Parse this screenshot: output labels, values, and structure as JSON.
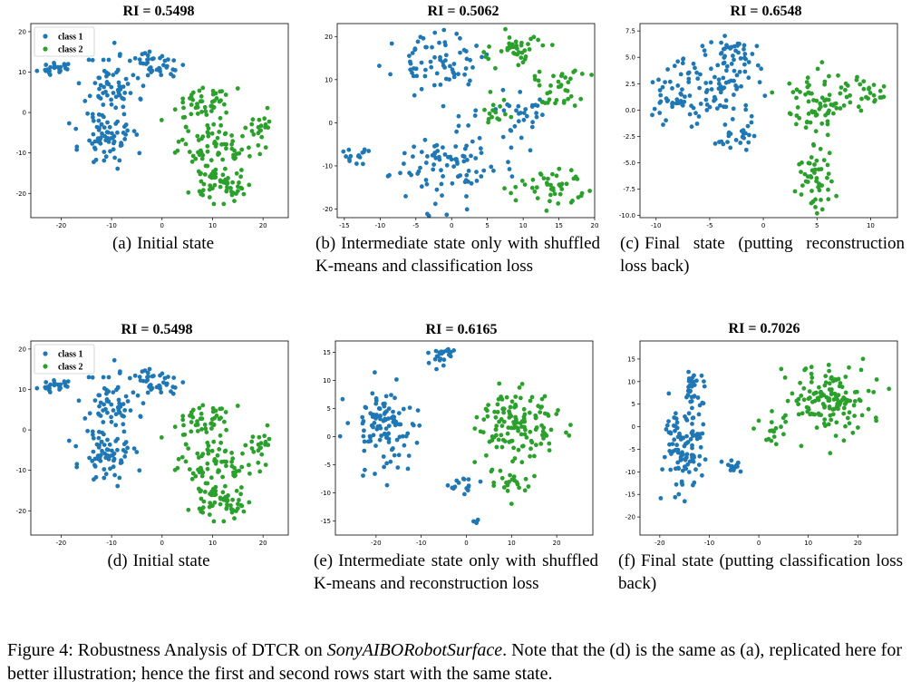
{
  "colors": {
    "class1": "#1f77b4",
    "class2": "#2ca02c"
  },
  "figure_caption": {
    "lead": "Figure 4: Robustness Analysis of DTCR on ",
    "dataset": "SonyAIBORobotSurface",
    "rest": ". Note that the (d) is the same as (a), replicated here for better illustration; hence the first and second rows start with the same state."
  },
  "chart_data": [
    {
      "type": "scatter",
      "title": "RI  =  0.5498",
      "caption_label": "(a)",
      "caption_text": "Initial state",
      "xlim": [
        -26,
        25
      ],
      "ylim": [
        -26,
        22
      ],
      "xticks": [
        {
          "v": -20,
          "label": "-20"
        },
        {
          "v": -10,
          "label": "-10"
        },
        {
          "v": 0,
          "label": "0"
        },
        {
          "v": 10,
          "label": "10"
        },
        {
          "v": 20,
          "label": "20"
        }
      ],
      "yticks": [
        {
          "v": 20,
          "label": "20"
        },
        {
          "v": 10,
          "label": "10"
        },
        {
          "v": 0,
          "label": "0"
        },
        {
          "v": -10,
          "label": "-10"
        },
        {
          "v": -20,
          "label": "-20"
        }
      ],
      "legend": [
        "class 1",
        "class 2"
      ],
      "legend_position": "top-left",
      "series": [
        {
          "name": "class 1",
          "clusters": [
            [
              -21,
              11,
              2,
              1.3,
              25
            ],
            [
              -10,
              7,
              3.5,
              5,
              60
            ],
            [
              -11,
              -6,
              3.5,
              5,
              70
            ],
            [
              -1,
              12,
              4,
              2.2,
              40
            ]
          ]
        },
        {
          "name": "class 2",
          "clusters": [
            [
              8,
              2,
              4,
              3,
              50
            ],
            [
              10,
              -8,
              4.5,
              4,
              70
            ],
            [
              12,
              -18,
              4,
              3,
              60
            ],
            [
              19,
              -3,
              2.5,
              3,
              20
            ]
          ]
        }
      ]
    },
    {
      "type": "scatter",
      "title": "RI = 0.5062",
      "caption_label": "(b)",
      "caption_text": "Intermediate state only with shuffled K-means and classification loss",
      "xlim": [
        -16,
        20
      ],
      "ylim": [
        -22,
        23
      ],
      "xticks": [
        {
          "v": -15,
          "label": "-15"
        },
        {
          "v": -10,
          "label": "-10"
        },
        {
          "v": -5,
          "label": "-5"
        },
        {
          "v": 0,
          "label": "0"
        },
        {
          "v": 5,
          "label": "5"
        },
        {
          "v": 10,
          "label": "10"
        },
        {
          "v": 15,
          "label": "15"
        },
        {
          "v": 20,
          "label": "20"
        }
      ],
      "yticks": [
        {
          "v": 20,
          "label": "20"
        },
        {
          "v": 10,
          "label": "10"
        },
        {
          "v": 0,
          "label": "0"
        },
        {
          "v": -10,
          "label": "-10"
        },
        {
          "v": -20,
          "label": "-20"
        }
      ],
      "series": [
        {
          "name": "class 1",
          "clusters": [
            [
              -2,
              14,
              4,
              4,
              70
            ],
            [
              -1,
              -10,
              5,
              6,
              90
            ],
            [
              -13,
              -8,
              1.6,
              1.6,
              15
            ],
            [
              9,
              2,
              3,
              5,
              35
            ]
          ]
        },
        {
          "name": "class 2",
          "clusters": [
            [
              9,
              17,
              3,
              3,
              40
            ],
            [
              15,
              8,
              2.5,
              4,
              35
            ],
            [
              14,
              -15,
              3,
              3,
              45
            ],
            [
              6,
              3,
              2,
              2,
              15
            ]
          ]
        }
      ]
    },
    {
      "type": "scatter",
      "title": "RI = 0.6548",
      "caption_label": "(c)",
      "caption_text": "Final state (putting reconstruction loss back)",
      "xlim": [
        -11.5,
        12.5
      ],
      "ylim": [
        -10.2,
        8.2
      ],
      "xticks": [
        {
          "v": -10,
          "label": "-10"
        },
        {
          "v": -5,
          "label": "-5"
        },
        {
          "v": 0,
          "label": "0"
        },
        {
          "v": 5,
          "label": "5"
        },
        {
          "v": 10,
          "label": "10"
        }
      ],
      "yticks": [
        {
          "v": 7.5,
          "label": "7.5"
        },
        {
          "v": 5,
          "label": "5.0"
        },
        {
          "v": 2.5,
          "label": "2.5"
        },
        {
          "v": 0,
          "label": "0.0"
        },
        {
          "v": -2.5,
          "label": "-2.5"
        },
        {
          "v": -5,
          "label": "-5.0"
        },
        {
          "v": -7.5,
          "label": "-7.5"
        },
        {
          "v": -10,
          "label": "-10.0"
        }
      ],
      "series": [
        {
          "name": "class 1",
          "clusters": [
            [
              -5,
              2,
              3,
              2,
              90
            ],
            [
              -3,
              5.5,
              1.5,
              1.3,
              40
            ],
            [
              -3,
              -2.5,
              1.2,
              1,
              25
            ],
            [
              -9,
              0.5,
              1.2,
              1.2,
              20
            ]
          ]
        },
        {
          "name": "class 2",
          "clusters": [
            [
              5,
              1,
              1.8,
              2.2,
              70
            ],
            [
              5,
              -6,
              1.2,
              2,
              50
            ],
            [
              9.5,
              1.5,
              1.3,
              1.3,
              25
            ]
          ]
        }
      ]
    },
    {
      "type": "scatter",
      "title": "RI  =  0.5498",
      "caption_label": "(d)",
      "caption_text": "Initial state",
      "xlim": [
        -26,
        25
      ],
      "ylim": [
        -26,
        22
      ],
      "xticks": [
        {
          "v": -20,
          "label": "-20"
        },
        {
          "v": -10,
          "label": "-10"
        },
        {
          "v": 0,
          "label": "0"
        },
        {
          "v": 10,
          "label": "10"
        },
        {
          "v": 20,
          "label": "20"
        }
      ],
      "yticks": [
        {
          "v": 20,
          "label": "20"
        },
        {
          "v": 10,
          "label": "10"
        },
        {
          "v": 0,
          "label": "0"
        },
        {
          "v": -10,
          "label": "-10"
        },
        {
          "v": -20,
          "label": "-20"
        }
      ],
      "legend": [
        "class 1",
        "class 2"
      ],
      "legend_position": "top-left",
      "series": [
        {
          "name": "class 1",
          "clusters": [
            [
              -21,
              11,
              2,
              1.3,
              25
            ],
            [
              -10,
              7,
              3.5,
              5,
              60
            ],
            [
              -11,
              -6,
              3.5,
              5,
              70
            ],
            [
              -1,
              12,
              4,
              2.2,
              40
            ]
          ]
        },
        {
          "name": "class 2",
          "clusters": [
            [
              8,
              2,
              4,
              3,
              50
            ],
            [
              10,
              -8,
              4.5,
              4,
              70
            ],
            [
              12,
              -18,
              4,
              3,
              60
            ],
            [
              19,
              -3,
              2.5,
              3,
              20
            ]
          ]
        }
      ]
    },
    {
      "type": "scatter",
      "title": "RI = 0.6165",
      "caption_label": "(e)",
      "caption_text": "Intermediate state only with shuffled K-means and reconstruction loss",
      "xlim": [
        -29,
        28
      ],
      "ylim": [
        -17.5,
        17
      ],
      "xticks": [
        {
          "v": -20,
          "label": "-20"
        },
        {
          "v": -10,
          "label": "-10"
        },
        {
          "v": 0,
          "label": "0"
        },
        {
          "v": 10,
          "label": "10"
        },
        {
          "v": 20,
          "label": "20"
        }
      ],
      "yticks": [
        {
          "v": 15,
          "label": "15"
        },
        {
          "v": 10,
          "label": "10"
        },
        {
          "v": 5,
          "label": "5"
        },
        {
          "v": 0,
          "label": "0"
        },
        {
          "v": -5,
          "label": "-5"
        },
        {
          "v": -10,
          "label": "-10"
        },
        {
          "v": -15,
          "label": "-15"
        }
      ],
      "series": [
        {
          "name": "class 1",
          "clusters": [
            [
              -18,
              2,
              5,
              5,
              110
            ],
            [
              -5,
              14,
              2,
              1.5,
              25
            ],
            [
              -1,
              -9,
              2,
              1.5,
              15
            ],
            [
              2,
              -15,
              0.8,
              0.8,
              4
            ]
          ]
        },
        {
          "name": "class 2",
          "clusters": [
            [
              12,
              2,
              7,
              4,
              130
            ],
            [
              10,
              -8,
              3,
              2,
              25
            ]
          ]
        }
      ]
    },
    {
      "type": "scatter",
      "title": "RI = 0.7026",
      "caption_label": "(f)",
      "caption_text": "Final state (putting classification loss back)",
      "xlim": [
        -24,
        28
      ],
      "ylim": [
        -24,
        19
      ],
      "xticks": [
        {
          "v": -20,
          "label": "-20"
        },
        {
          "v": -10,
          "label": "-10"
        },
        {
          "v": 0,
          "label": "0"
        },
        {
          "v": 10,
          "label": "10"
        },
        {
          "v": 20,
          "label": "20"
        }
      ],
      "yticks": [
        {
          "v": 15,
          "label": "15"
        },
        {
          "v": 10,
          "label": "10"
        },
        {
          "v": 5,
          "label": "5"
        },
        {
          "v": 0,
          "label": "0"
        },
        {
          "v": -5,
          "label": "-5"
        },
        {
          "v": -10,
          "label": "-10"
        },
        {
          "v": -15,
          "label": "-15"
        },
        {
          "v": -20,
          "label": "-20"
        }
      ],
      "series": [
        {
          "name": "class 1",
          "clusters": [
            [
              -15,
              -5,
              3,
              7,
              110
            ],
            [
              -5,
              -9,
              1.5,
              1,
              15
            ],
            [
              -13,
              8,
              2,
              3,
              30
            ]
          ]
        },
        {
          "name": "class 2",
          "clusters": [
            [
              14,
              6,
              6,
              5,
              140
            ],
            [
              3,
              -1,
              2,
              2,
              15
            ]
          ]
        }
      ]
    }
  ]
}
